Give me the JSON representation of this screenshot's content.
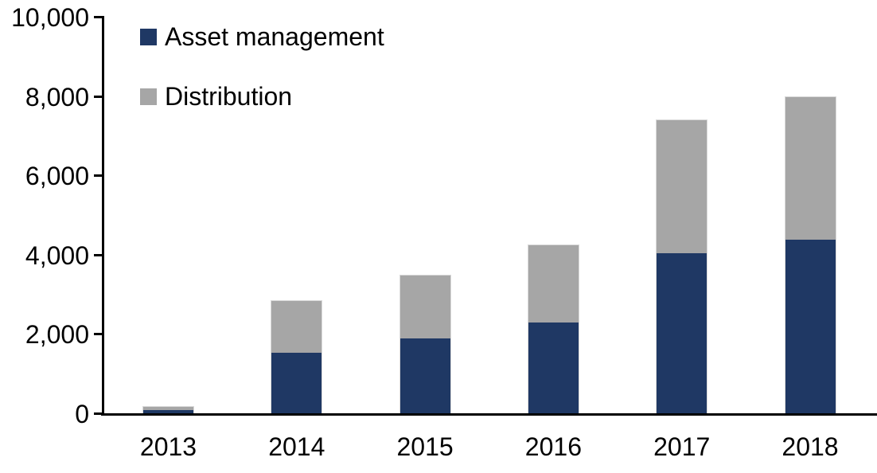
{
  "chart_data": {
    "type": "bar",
    "stacked": true,
    "title": "",
    "xlabel": "",
    "ylabel": "",
    "categories": [
      "2013",
      "2014",
      "2015",
      "2016",
      "2017",
      "2018"
    ],
    "series": [
      {
        "name": "Asset management",
        "color": "#1F3864",
        "values": [
          100,
          1550,
          1900,
          2300,
          4050,
          4400
        ]
      },
      {
        "name": "Distribution",
        "color": "#A6A6A6",
        "values": [
          90,
          1300,
          1600,
          1950,
          3350,
          3600
        ]
      }
    ],
    "totals": [
      190,
      2850,
      3500,
      4250,
      7400,
      8000
    ],
    "ylim": [
      0,
      10000
    ],
    "ytick_step": 2000,
    "ytick_labels": [
      "0",
      "2,000",
      "4,000",
      "6,000",
      "8,000",
      "10,000"
    ],
    "legend_position": "top-left",
    "grid": false
  },
  "colors": {
    "axis": "#000000",
    "text": "#000000",
    "background": "#FFFFFF",
    "bar_border": "#D9D9D9"
  }
}
